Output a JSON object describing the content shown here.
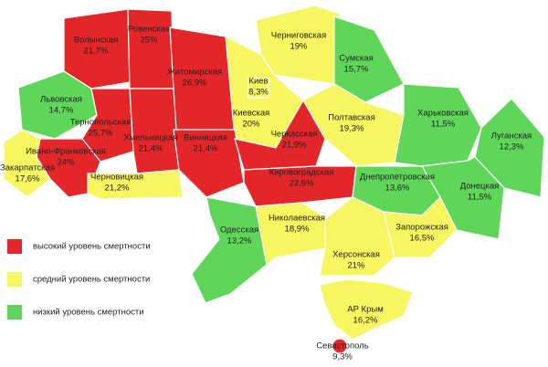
{
  "legend": [
    {
      "label": "высокий уровень смертности",
      "color": "#e3262a"
    },
    {
      "label": "средний уровень смертности",
      "color": "#f7f560"
    },
    {
      "label": "низкий уровень смертности",
      "color": "#5fd65a"
    }
  ],
  "regions": [
    {
      "name": "Волынская",
      "value": "21,7%",
      "level": 0
    },
    {
      "name": "Ровенская",
      "value": "25%",
      "level": 0
    },
    {
      "name": "Житомирская",
      "value": "26,9%",
      "level": 0
    },
    {
      "name": "Черниговская",
      "value": "19%",
      "level": 1
    },
    {
      "name": "Сумская",
      "value": "15,7%",
      "level": 2
    },
    {
      "name": "Львовская",
      "value": "14,7%",
      "level": 2
    },
    {
      "name": "Киевская",
      "value": "20%",
      "level": 1
    },
    {
      "name": "Киев",
      "value": "8,3%",
      "level": 1
    },
    {
      "name": "Полтавская",
      "value": "19,3%",
      "level": 1
    },
    {
      "name": "Харьковская",
      "value": "11,5%",
      "level": 2
    },
    {
      "name": "Тернопольская",
      "value": "25,7%",
      "level": 0
    },
    {
      "name": "Хмельницкая",
      "value": "21,4%",
      "level": 0
    },
    {
      "name": "Винницкая",
      "value": "21,4%",
      "level": 0
    },
    {
      "name": "Черкасская",
      "value": "21,9%",
      "level": 0
    },
    {
      "name": "Луганская",
      "value": "12,3%",
      "level": 2
    },
    {
      "name": "Ивано-Франковская",
      "value": "24%",
      "level": 0
    },
    {
      "name": "Закарпатская",
      "value": "17,6%",
      "level": 1
    },
    {
      "name": "Черновицкая",
      "value": "21,2%",
      "level": 1
    },
    {
      "name": "Кировоградская",
      "value": "22,6%",
      "level": 0
    },
    {
      "name": "Днепропетровская",
      "value": "13,6%",
      "level": 2
    },
    {
      "name": "Донецкая",
      "value": "11,5%",
      "level": 2
    },
    {
      "name": "Одесская",
      "value": "13,2%",
      "level": 2
    },
    {
      "name": "Николаевская",
      "value": "18,9%",
      "level": 1
    },
    {
      "name": "Запорожская",
      "value": "16,5%",
      "level": 1
    },
    {
      "name": "Херсонская",
      "value": "21%",
      "level": 1
    },
    {
      "name": "АР Крым",
      "value": "16,2%",
      "level": 1
    },
    {
      "name": "Севастополь",
      "value": "9,3%",
      "level": 0
    }
  ]
}
